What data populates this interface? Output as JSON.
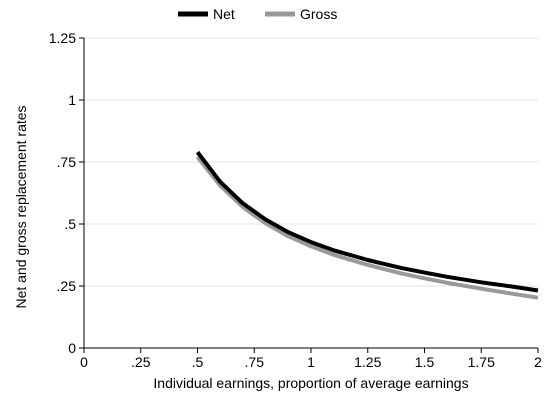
{
  "chart_data": {
    "type": "line",
    "title": "",
    "xlabel": "Individual earnings, proportion of average earnings",
    "ylabel": "Net and gross replacement rates",
    "xlim": [
      0,
      2
    ],
    "ylim": [
      0,
      1.25
    ],
    "x_ticks": [
      0,
      0.25,
      0.5,
      0.75,
      1,
      1.25,
      1.5,
      1.75,
      2
    ],
    "x_tick_labels": [
      "0",
      ".25",
      ".5",
      ".75",
      "1",
      "1.25",
      "1.5",
      "1.75",
      "2"
    ],
    "y_ticks": [
      0,
      0.25,
      0.5,
      0.75,
      1,
      1.25
    ],
    "y_tick_labels": [
      "0",
      ".25",
      ".5",
      ".75",
      "1",
      "1.25"
    ],
    "grid": "horizontal",
    "legend_position": "top",
    "series": [
      {
        "name": "Net",
        "color": "#000000",
        "x": [
          0.5,
          0.6,
          0.7,
          0.8,
          0.9,
          1.0,
          1.1,
          1.25,
          1.4,
          1.5,
          1.6,
          1.75,
          1.9,
          2.0
        ],
        "y": [
          0.79,
          0.67,
          0.583,
          0.518,
          0.467,
          0.427,
          0.394,
          0.355,
          0.322,
          0.304,
          0.287,
          0.265,
          0.246,
          0.232
        ]
      },
      {
        "name": "Gross",
        "color": "#999999",
        "x": [
          0.5,
          0.6,
          0.7,
          0.8,
          0.9,
          1.0,
          1.1,
          1.25,
          1.4,
          1.5,
          1.6,
          1.75,
          1.9,
          2.0
        ],
        "y": [
          0.77,
          0.655,
          0.568,
          0.503,
          0.451,
          0.41,
          0.376,
          0.335,
          0.3,
          0.281,
          0.263,
          0.239,
          0.217,
          0.203
        ]
      }
    ]
  }
}
